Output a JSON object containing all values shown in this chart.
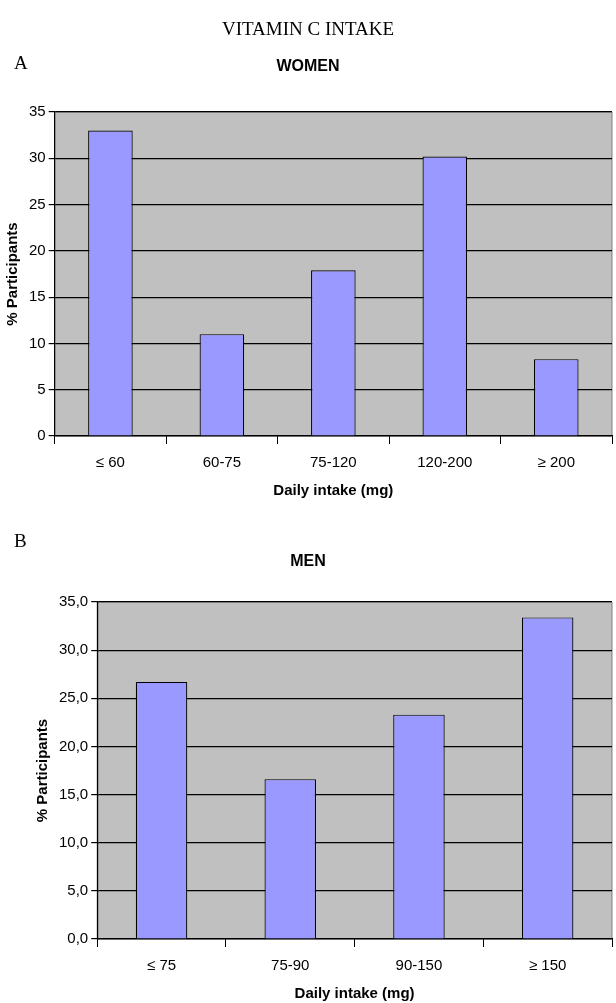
{
  "chart_data": [
    {
      "type": "bar",
      "title": "VITAMIN C INTAKE",
      "subtitle": "WOMEN",
      "annotations": [
        "A"
      ],
      "xlabel": "Daily intake (mg)",
      "ylabel": "% Participants",
      "categories": [
        "≤ 60",
        "60-75",
        "75-120",
        "120-200",
        "≥ 200"
      ],
      "values": [
        33,
        11,
        17.9,
        30.2,
        8.3
      ],
      "color": "#9999ff",
      "ylim": [
        0,
        35
      ],
      "yticks": [
        0,
        5,
        10,
        15,
        20,
        25,
        30,
        35
      ],
      "grid": "y",
      "legend": false
    },
    {
      "type": "bar",
      "title": "MEN",
      "annotations": [
        "B"
      ],
      "xlabel": "Daily intake (mg)",
      "ylabel": "% Participants",
      "categories": [
        "≤ 75",
        "75-90",
        "90-150",
        "≥ 150"
      ],
      "values": [
        26.7,
        16.6,
        23.3,
        33.4
      ],
      "color": "#9999ff",
      "ylim": [
        0,
        35
      ],
      "yticks": [
        {
          "value": 0,
          "label": "0,0"
        },
        {
          "value": 5,
          "label": "5,0"
        },
        {
          "value": 10,
          "label": "10,0"
        },
        {
          "value": 15,
          "label": "15,0"
        },
        {
          "value": 20,
          "label": "20,0"
        },
        {
          "value": 25,
          "label": "25,0"
        },
        {
          "value": 30,
          "label": "30,0"
        },
        {
          "value": 35,
          "label": "35,0"
        }
      ],
      "grid": "y",
      "legend": false
    }
  ]
}
